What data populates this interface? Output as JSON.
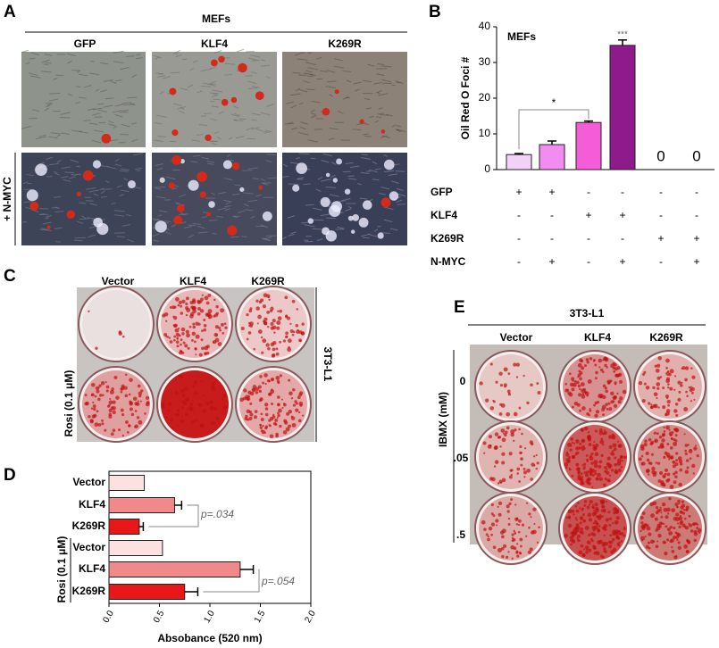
{
  "panels": {
    "A": {
      "letter": "A",
      "header": "MEFs",
      "columns": [
        "GFP",
        "KLF4",
        "K269R"
      ],
      "row_label": "+ N-MYC"
    },
    "B": {
      "letter": "B"
    },
    "C": {
      "letter": "C",
      "columns": [
        "Vector",
        "KLF4",
        "K269R"
      ],
      "row_label": "Rosi (0.1 μM)",
      "side_label": "3T3-L1"
    },
    "D": {
      "letter": "D"
    },
    "E": {
      "letter": "E",
      "header": "3T3-L1",
      "columns": [
        "Vector",
        "KLF4",
        "K269R"
      ],
      "rows": [
        "0",
        ".05",
        ".5"
      ],
      "row_axis_label": "IBMX (mM)"
    }
  },
  "chart_data": [
    {
      "type": "bar",
      "ylabel": "Oil Red O  Foci #",
      "inset_label": "MEFs",
      "values": [
        4.2,
        7,
        13.2,
        34.8,
        0,
        0
      ],
      "errors": [
        0.3,
        1,
        0.4,
        1.5,
        0,
        0
      ],
      "value_labels": [
        null,
        null,
        null,
        null,
        "0",
        "0"
      ],
      "colors": [
        "#f2d2f6",
        "#f28cf0",
        "#f45cd8",
        "#8e1a8c"
      ],
      "ylim": [
        0,
        40
      ],
      "yticks": [
        0,
        10,
        20,
        30,
        40
      ],
      "annotations": [
        "*",
        "***"
      ],
      "conditions": [
        {
          "name": "GFP",
          "signs": [
            "+",
            "+",
            "-",
            "-",
            "-",
            "-"
          ]
        },
        {
          "name": "KLF4",
          "signs": [
            "-",
            "-",
            "+",
            "+",
            "-",
            "-"
          ]
        },
        {
          "name": "K269R",
          "signs": [
            "-",
            "-",
            "-",
            "-",
            "+",
            "+"
          ]
        },
        {
          "name": "N-MYC",
          "signs": [
            "-",
            "+",
            "-",
            "+",
            "-",
            "+"
          ]
        }
      ]
    },
    {
      "type": "hbar",
      "xlabel": "Absobance (520 nm)",
      "group_label": "Rosi (0.1 μM)",
      "categories": [
        "Vector",
        "KLF4",
        "K269R",
        "Vector",
        "KLF4",
        "K269R"
      ],
      "values": [
        0.35,
        0.65,
        0.3,
        0.53,
        1.3,
        0.75
      ],
      "errors": [
        0,
        0.07,
        0.04,
        0,
        0.13,
        0.13
      ],
      "colors": [
        "#fde0e0",
        "#f08a8a",
        "#e81818",
        "#fde0e0",
        "#f08a8a",
        "#e81818"
      ],
      "xlim": [
        0,
        2
      ],
      "xticks": [
        {
          "value": 0,
          "label": "0.0"
        },
        {
          "value": 0.5,
          "label": "0.5"
        },
        {
          "value": 1,
          "label": "1.0"
        },
        {
          "value": 1.5,
          "label": "1.5"
        },
        {
          "value": 2,
          "label": "2.0"
        }
      ],
      "annotations": [
        "p=.034",
        "p=.054"
      ]
    }
  ]
}
